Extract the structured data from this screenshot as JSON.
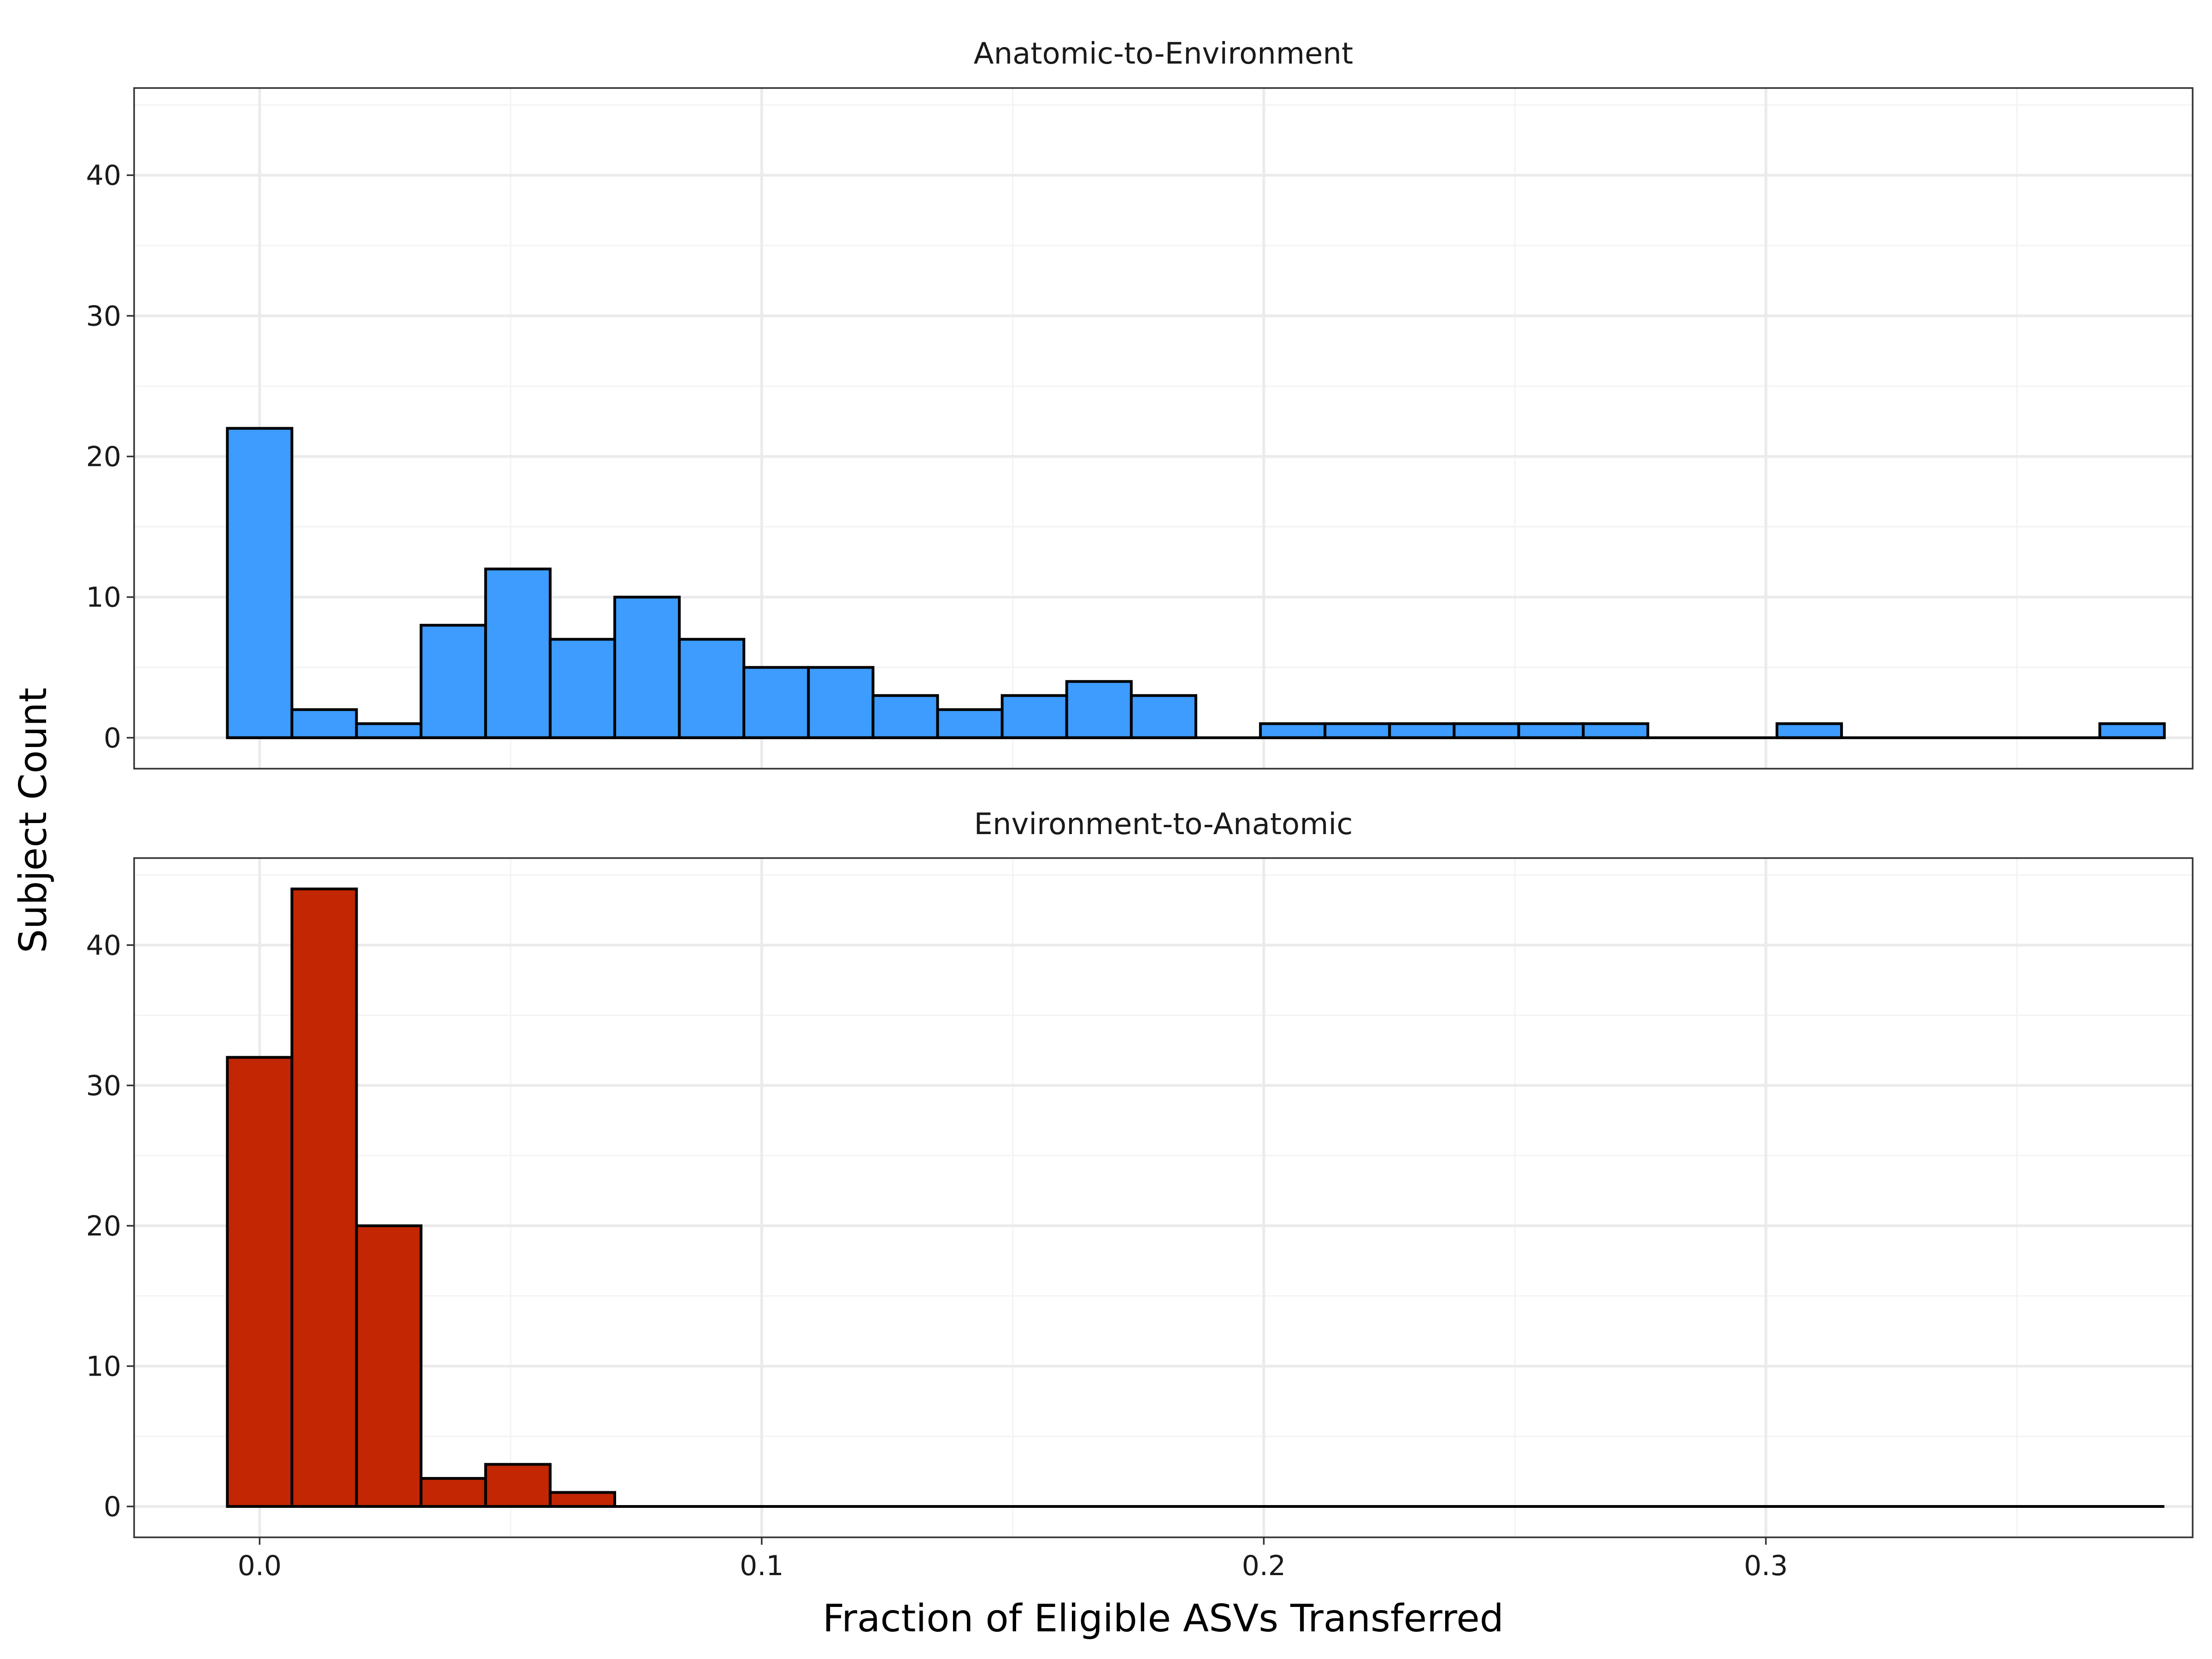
{
  "chart_data": {
    "type": "bar",
    "subtype": "histogram",
    "xlabel": "Fraction of Eligible ASVs Transferred",
    "ylabel": "Subject Count",
    "xlim": [
      -0.025,
      0.385
    ],
    "ylim": [
      -2.2,
      46.2
    ],
    "x_ticks": [
      0.0,
      0.1,
      0.2,
      0.3
    ],
    "x_tick_labels": [
      "0.0",
      "0.1",
      "0.2",
      "0.3"
    ],
    "y_ticks": [
      0,
      10,
      20,
      30,
      40
    ],
    "y_tick_labels": [
      "0",
      "10",
      "20",
      "30",
      "40"
    ],
    "bin_start": -0.00643,
    "bin_width": 0.01286,
    "grid": true,
    "panels": [
      {
        "title": "Anatomic-to-Environment",
        "color": "#3d9cfd",
        "values": [
          22,
          2,
          1,
          8,
          12,
          7,
          10,
          7,
          5,
          5,
          3,
          2,
          3,
          4,
          3,
          0,
          1,
          1,
          1,
          1,
          1,
          1,
          0,
          0,
          1,
          0,
          0,
          0,
          0,
          1
        ]
      },
      {
        "title": "Environment-to-Anatomic",
        "color": "#c22602",
        "values": [
          32,
          44,
          20,
          2,
          3,
          1,
          0,
          0,
          0,
          0,
          0,
          0,
          0,
          0,
          0,
          0,
          0,
          0,
          0,
          0,
          0,
          0,
          0,
          0,
          0,
          0,
          0,
          0,
          0,
          0
        ]
      }
    ]
  }
}
